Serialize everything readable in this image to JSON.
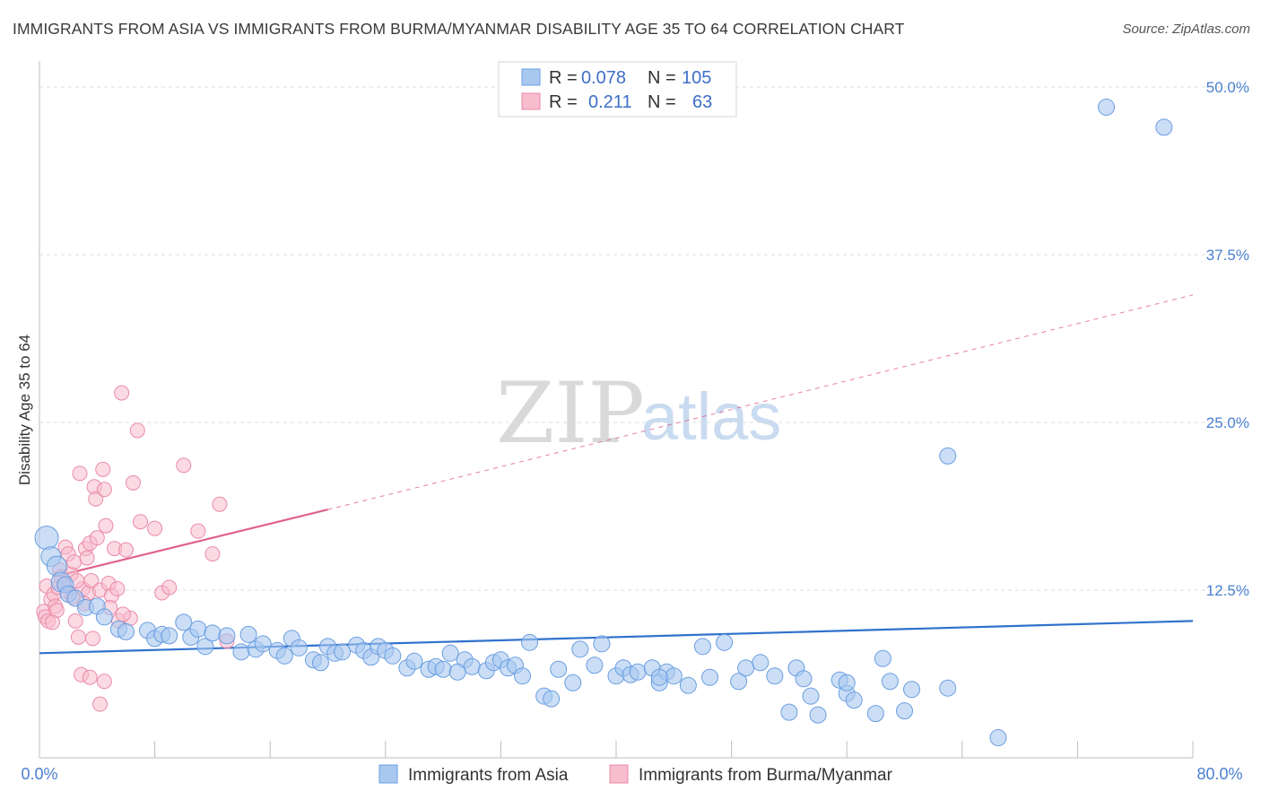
{
  "title": "IMMIGRANTS FROM ASIA VS IMMIGRANTS FROM BURMA/MYANMAR DISABILITY AGE 35 TO 64 CORRELATION CHART",
  "source": "Source: ZipAtlas.com",
  "watermark": {
    "zip": "ZIP",
    "atlas": "atlas"
  },
  "colors": {
    "asia_fill": "#a9c8f0",
    "asia_stroke": "#6a9ee0",
    "asia_line": "#2f72cc",
    "burma_fill": "#f7bccd",
    "burma_stroke": "#ea8aa7",
    "burma_line": "#e0628c",
    "axis_tick": "#4a7fd0",
    "grid": "#dddddd"
  },
  "legend": {
    "rows": [
      {
        "r_label": "R =",
        "r_value": "0.078",
        "n_label": "N =",
        "n_value": "105"
      },
      {
        "r_label": "R =",
        "r_value": "0.211",
        "n_label": "N =",
        "n_value": "63"
      }
    ]
  },
  "chart_data": {
    "type": "scatter",
    "title": "IMMIGRANTS FROM ASIA VS IMMIGRANTS FROM BURMA/MYANMAR DISABILITY AGE 35 TO 64 CORRELATION CHART",
    "xlabel": "",
    "ylabel": "Disability Age 35 to 64",
    "xlim": [
      0,
      80
    ],
    "ylim": [
      0,
      50
    ],
    "x_tick_labels": [
      "0.0%",
      "80.0%"
    ],
    "y_ticks": [
      12.5,
      25.0,
      37.5,
      50.0
    ],
    "y_tick_labels": [
      "12.5%",
      "25.0%",
      "37.5%",
      "50.0%"
    ],
    "grid": true,
    "legend_position": "top-center",
    "series": [
      {
        "name": "Immigrants from Asia",
        "R": 0.078,
        "N": 105,
        "trend": {
          "x": [
            0,
            80
          ],
          "y": [
            7.8,
            10.2
          ]
        },
        "points": [
          [
            0.5,
            16.4
          ],
          [
            0.8,
            15.0
          ],
          [
            1.2,
            14.3
          ],
          [
            1.5,
            13.1
          ],
          [
            1.8,
            12.9
          ],
          [
            2.0,
            12.2
          ],
          [
            2.5,
            11.9
          ],
          [
            3.2,
            11.2
          ],
          [
            4.0,
            11.3
          ],
          [
            4.5,
            10.5
          ],
          [
            5.5,
            9.6
          ],
          [
            6.0,
            9.4
          ],
          [
            7.5,
            9.5
          ],
          [
            8.0,
            8.9
          ],
          [
            8.5,
            9.2
          ],
          [
            9.0,
            9.1
          ],
          [
            10.0,
            10.1
          ],
          [
            10.5,
            9.0
          ],
          [
            11.0,
            9.6
          ],
          [
            11.5,
            8.3
          ],
          [
            12.0,
            9.3
          ],
          [
            13.0,
            9.1
          ],
          [
            14.0,
            7.9
          ],
          [
            14.5,
            9.2
          ],
          [
            15.0,
            8.1
          ],
          [
            15.5,
            8.5
          ],
          [
            16.5,
            8.0
          ],
          [
            17.0,
            7.6
          ],
          [
            17.5,
            8.9
          ],
          [
            18.0,
            8.2
          ],
          [
            19.0,
            7.3
          ],
          [
            19.5,
            7.1
          ],
          [
            20.0,
            8.3
          ],
          [
            20.5,
            7.8
          ],
          [
            21.0,
            7.9
          ],
          [
            22.0,
            8.4
          ],
          [
            22.5,
            8.0
          ],
          [
            23.0,
            7.5
          ],
          [
            23.5,
            8.3
          ],
          [
            24.0,
            8.0
          ],
          [
            24.5,
            7.6
          ],
          [
            25.5,
            6.7
          ],
          [
            26.0,
            7.2
          ],
          [
            27.0,
            6.6
          ],
          [
            27.5,
            6.8
          ],
          [
            28.0,
            6.6
          ],
          [
            28.5,
            7.8
          ],
          [
            29.5,
            7.3
          ],
          [
            30.0,
            6.8
          ],
          [
            31.0,
            6.5
          ],
          [
            31.5,
            7.1
          ],
          [
            32.0,
            7.3
          ],
          [
            32.5,
            6.7
          ],
          [
            33.0,
            6.9
          ],
          [
            33.5,
            6.1
          ],
          [
            34.0,
            8.6
          ],
          [
            35.0,
            4.6
          ],
          [
            35.5,
            4.4
          ],
          [
            36.0,
            6.6
          ],
          [
            37.0,
            5.6
          ],
          [
            37.5,
            8.1
          ],
          [
            38.5,
            6.9
          ],
          [
            39.0,
            8.5
          ],
          [
            40.0,
            6.1
          ],
          [
            40.5,
            6.7
          ],
          [
            41.0,
            6.2
          ],
          [
            41.5,
            6.4
          ],
          [
            42.5,
            6.7
          ],
          [
            43.0,
            5.6
          ],
          [
            43.5,
            6.4
          ],
          [
            44.0,
            6.1
          ],
          [
            45.0,
            5.4
          ],
          [
            46.0,
            8.3
          ],
          [
            46.5,
            6.0
          ],
          [
            47.5,
            8.6
          ],
          [
            48.5,
            5.7
          ],
          [
            49.0,
            6.7
          ],
          [
            50.0,
            7.1
          ],
          [
            51.0,
            6.1
          ],
          [
            52.0,
            3.4
          ],
          [
            52.5,
            6.7
          ],
          [
            53.0,
            5.9
          ],
          [
            53.5,
            4.6
          ],
          [
            54.0,
            3.2
          ],
          [
            55.5,
            5.8
          ],
          [
            56.0,
            4.8
          ],
          [
            56.5,
            4.3
          ],
          [
            58.0,
            3.3
          ],
          [
            58.5,
            7.4
          ],
          [
            59.0,
            5.7
          ],
          [
            60.0,
            3.5
          ],
          [
            60.5,
            5.1
          ],
          [
            63.0,
            5.2
          ],
          [
            66.5,
            1.5
          ],
          [
            74.0,
            48.5
          ],
          [
            78.0,
            47.0
          ],
          [
            63.0,
            22.5
          ],
          [
            56.0,
            5.6
          ],
          [
            43.0,
            6.0
          ],
          [
            29.0,
            6.4
          ]
        ]
      },
      {
        "name": "Immigrants from Burma/Myanmar",
        "R": 0.211,
        "N": 63,
        "trend": {
          "x": [
            1,
            20
          ],
          "y": [
            13.5,
            18.5
          ]
        },
        "trend_extended": {
          "x": [
            20,
            80
          ],
          "y": [
            18.5,
            34.5
          ]
        },
        "points": [
          [
            0.3,
            10.9
          ],
          [
            0.4,
            10.5
          ],
          [
            0.5,
            12.8
          ],
          [
            0.6,
            10.2
          ],
          [
            0.8,
            11.8
          ],
          [
            1.0,
            12.2
          ],
          [
            1.1,
            11.3
          ],
          [
            1.3,
            12.7
          ],
          [
            1.4,
            14.0
          ],
          [
            1.5,
            13.5
          ],
          [
            1.7,
            12.9
          ],
          [
            1.8,
            15.7
          ],
          [
            2.0,
            15.2
          ],
          [
            2.2,
            13.7
          ],
          [
            2.4,
            14.6
          ],
          [
            2.5,
            10.2
          ],
          [
            2.7,
            9.0
          ],
          [
            2.8,
            21.2
          ],
          [
            3.0,
            12.6
          ],
          [
            3.2,
            15.6
          ],
          [
            3.3,
            14.9
          ],
          [
            3.4,
            12.3
          ],
          [
            3.5,
            16.0
          ],
          [
            3.6,
            13.2
          ],
          [
            3.8,
            20.2
          ],
          [
            3.9,
            19.3
          ],
          [
            4.0,
            16.4
          ],
          [
            4.2,
            12.5
          ],
          [
            4.4,
            21.5
          ],
          [
            4.5,
            20.0
          ],
          [
            4.6,
            17.3
          ],
          [
            4.8,
            13.0
          ],
          [
            5.0,
            12.1
          ],
          [
            5.2,
            15.6
          ],
          [
            5.4,
            12.6
          ],
          [
            5.5,
            10.2
          ],
          [
            5.7,
            27.2
          ],
          [
            6.0,
            15.5
          ],
          [
            6.3,
            10.4
          ],
          [
            6.5,
            20.5
          ],
          [
            6.8,
            24.4
          ],
          [
            7.0,
            17.6
          ],
          [
            8.0,
            17.1
          ],
          [
            8.5,
            12.3
          ],
          [
            9.0,
            12.7
          ],
          [
            10.0,
            21.8
          ],
          [
            11.0,
            16.9
          ],
          [
            12.0,
            15.2
          ],
          [
            12.5,
            18.9
          ],
          [
            13.0,
            8.7
          ],
          [
            2.9,
            6.2
          ],
          [
            3.5,
            6.0
          ],
          [
            4.2,
            4.0
          ],
          [
            4.5,
            5.7
          ],
          [
            3.7,
            8.9
          ],
          [
            2.6,
            13.2
          ],
          [
            1.9,
            12.4
          ],
          [
            1.2,
            11.0
          ],
          [
            0.9,
            10.1
          ],
          [
            5.8,
            10.7
          ],
          [
            4.9,
            11.2
          ],
          [
            3.1,
            11.5
          ],
          [
            2.3,
            12.0
          ]
        ]
      }
    ]
  },
  "bottom_legend": {
    "asia": "Immigrants from Asia",
    "burma": "Immigrants from Burma/Myanmar"
  }
}
